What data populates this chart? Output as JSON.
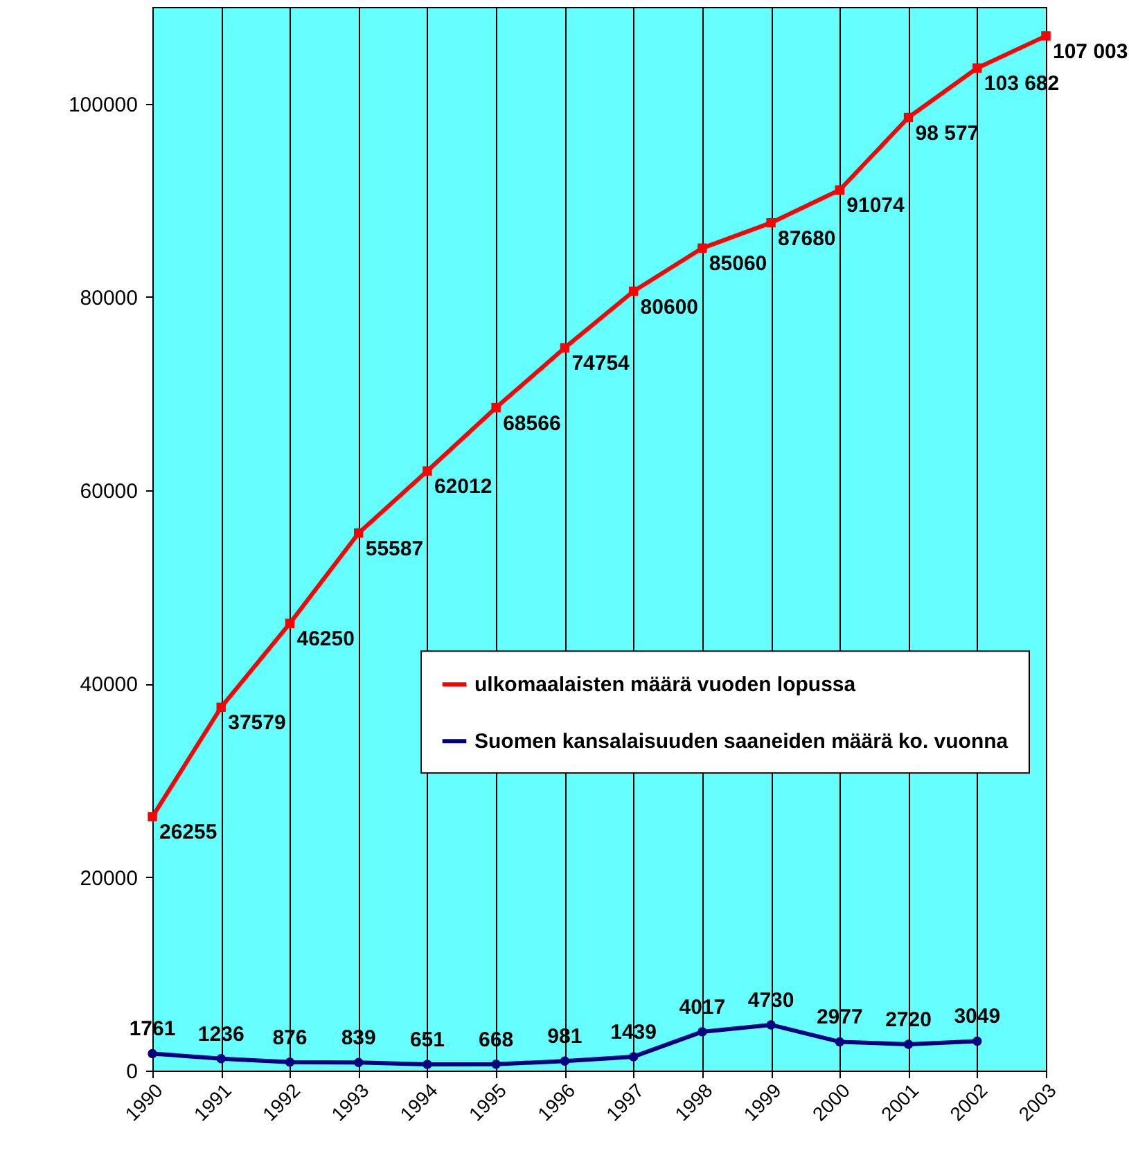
{
  "chart_data": {
    "type": "line",
    "categories": [
      "1990",
      "1991",
      "1992",
      "1993",
      "1994",
      "1995",
      "1996",
      "1997",
      "1998",
      "1999",
      "2000",
      "2001",
      "2002",
      "2003"
    ],
    "series": [
      {
        "name": "ulkomaalaisten määrä vuoden lopussa",
        "color": "#ff0000",
        "marker": "square",
        "values": [
          26255,
          37579,
          46250,
          55587,
          62012,
          68566,
          74754,
          80600,
          85060,
          87680,
          91074,
          98577,
          103682,
          107003
        ],
        "value_labels": [
          "26255",
          "37579",
          "46250",
          "55587",
          "62012",
          "68566",
          "74754",
          "80600",
          "85060",
          "87680",
          "91074",
          "98 577",
          "103 682",
          "107 003"
        ]
      },
      {
        "name": "Suomen kansalaisuuden saaneiden määrä ko. vuonna",
        "color": "#000080",
        "marker": "circle",
        "values": [
          1761,
          1236,
          876,
          839,
          651,
          668,
          981,
          1439,
          4017,
          4730,
          2977,
          2720,
          3049,
          null
        ],
        "value_labels": [
          "1761",
          "1236",
          "876",
          "839",
          "651",
          "668",
          "981",
          "1439",
          "4017",
          "4730",
          "2977",
          "2720",
          "3049",
          null
        ]
      }
    ],
    "ylim": [
      0,
      110000
    ],
    "yticks": [
      0,
      20000,
      40000,
      60000,
      80000,
      100000
    ],
    "grid": "x",
    "legend": "center",
    "line_style": "solid"
  }
}
